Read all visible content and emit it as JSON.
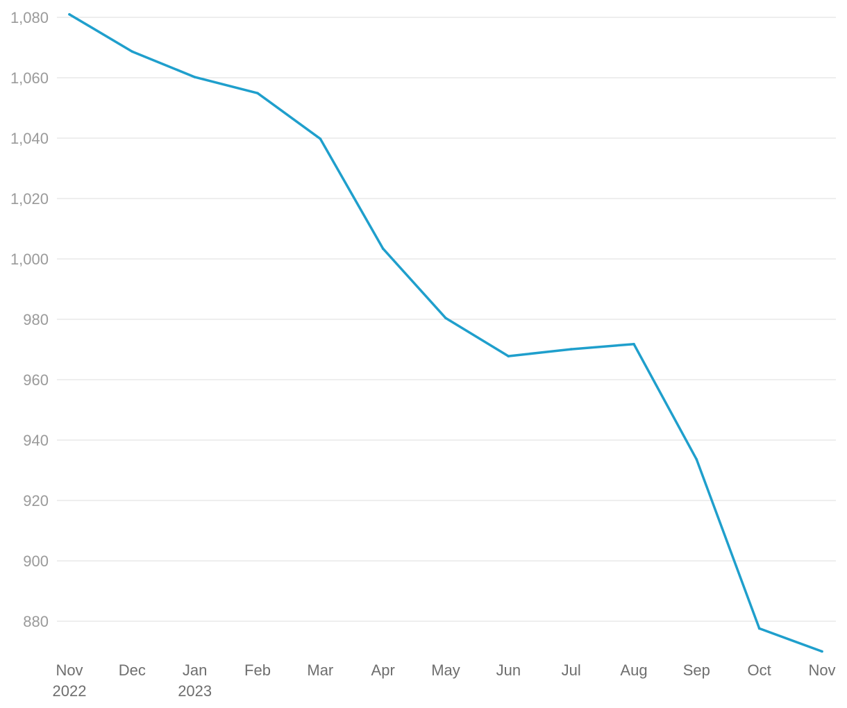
{
  "chart_data": {
    "type": "line",
    "title": "",
    "xlabel": "",
    "ylabel": "",
    "x": [
      "Nov",
      "Dec",
      "Jan",
      "Feb",
      "Mar",
      "Apr",
      "May",
      "Jun",
      "Jul",
      "Aug",
      "Sep",
      "Oct",
      "Nov"
    ],
    "x_sublabels": [
      "2022",
      "",
      "2023",
      "",
      "",
      "",
      "",
      "",
      "",
      "",
      "",
      "",
      ""
    ],
    "series": [
      {
        "values": [
          1081,
          1068.7,
          1060.2,
          1054.9,
          1039.8,
          1003.4,
          980.4,
          967.8,
          970.1,
          971.8,
          933.6,
          877.6,
          870
        ]
      }
    ],
    "yticks": [
      880,
      900,
      920,
      940,
      960,
      980,
      1000,
      1020,
      1040,
      1060,
      1080
    ],
    "ytick_labels": [
      "880",
      "900",
      "920",
      "940",
      "960",
      "980",
      "1,000",
      "1,020",
      "1,040",
      "1,060",
      "1,080"
    ],
    "ylim": [
      866,
      1082
    ],
    "grid": true,
    "line_color": "#1f9fcc"
  }
}
